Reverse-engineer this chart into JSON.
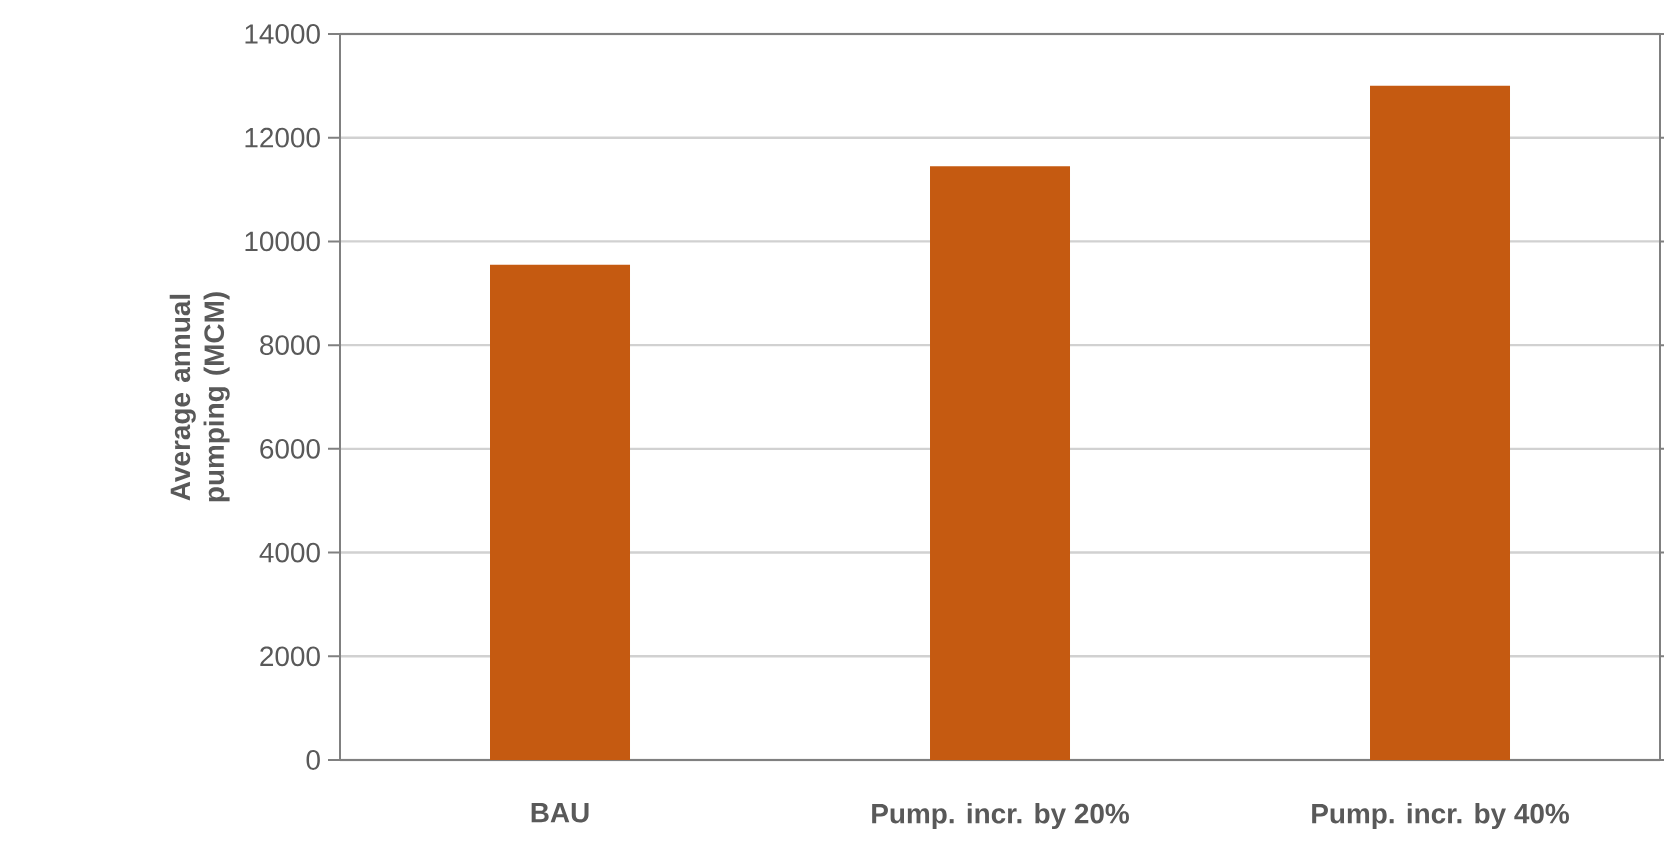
{
  "chart_data": {
    "type": "bar",
    "ylabel": "Average annual pumping (MCM)",
    "categories": [
      "BAU",
      "Pump. incr. by 20%",
      "Pump. incr. by 40%"
    ],
    "values": [
      9550,
      11450,
      13000
    ],
    "color": "#c55a11",
    "ylim": [
      0,
      14000
    ],
    "yticks": [
      0,
      2000,
      4000,
      6000,
      8000,
      10000,
      12000,
      14000
    ],
    "grid": "y"
  }
}
